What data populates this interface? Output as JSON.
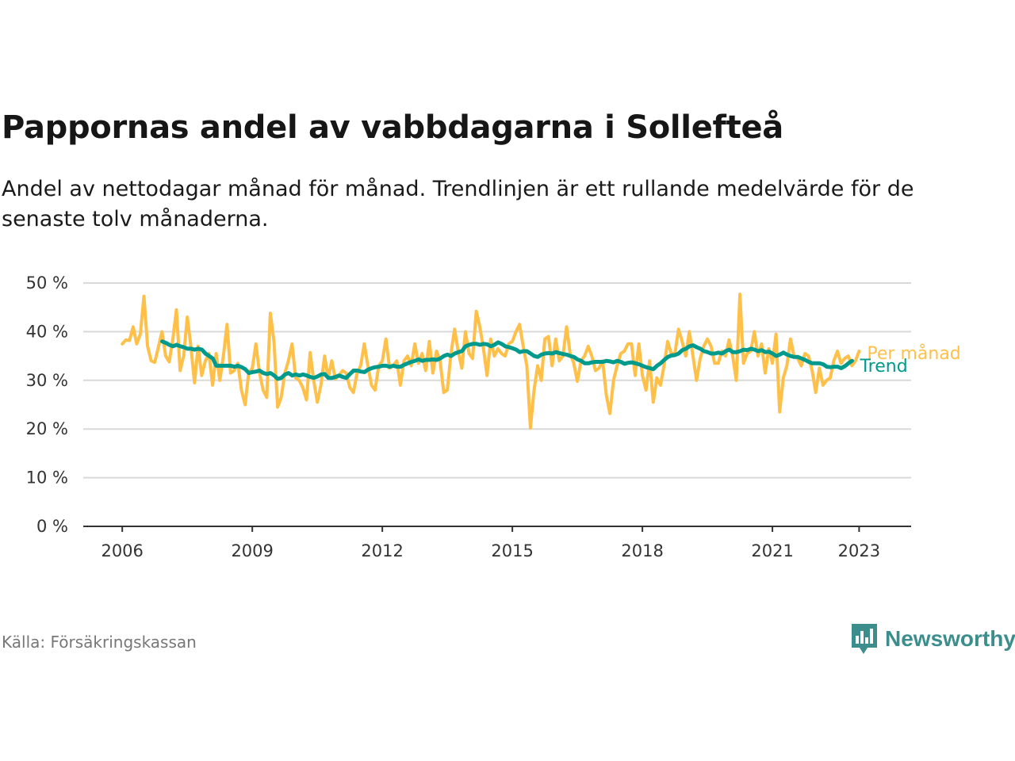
{
  "header": {
    "title": "Pappornas andel av vabbdagarna i Sollefteå",
    "subtitle": "Andel av nettodagar månad för månad. Trendlinjen är ett rullande medelvärde för de senaste tolv månaderna."
  },
  "footer": {
    "source": "Källa: Försäkringskassan",
    "brand": "Newsworthy",
    "brand_color": "#3b8e8c",
    "brand_icon": "bar-chart-speech-bubble-icon"
  },
  "chart_data": {
    "type": "line",
    "title": "Pappornas andel av vabbdagarna i Sollefteå",
    "subtitle": "Andel av nettodagar månad för månad. Trendlinjen är ett rullande medelvärde för de senaste tolv månaderna.",
    "xlabel": "",
    "ylabel": "",
    "x_unit": "year",
    "xlim": [
      2005.1,
      2024.2
    ],
    "ylim": [
      0,
      50
    ],
    "y_ticks": [
      0,
      10,
      20,
      30,
      40,
      50
    ],
    "y_tick_labels": [
      "0 %",
      "10 %",
      "20 %",
      "30 %",
      "40 %",
      "50 %"
    ],
    "x_ticks": [
      2006,
      2009,
      2012,
      2015,
      2018,
      2021,
      2023
    ],
    "x_tick_labels": [
      "2006",
      "2009",
      "2012",
      "2015",
      "2018",
      "2021",
      "2023"
    ],
    "grid": true,
    "legend": "inline-right",
    "series": [
      {
        "name": "Per månad",
        "color": "#ffc04a",
        "start_year": 2006.0,
        "step_years": 0.08333333,
        "values": [
          37.5,
          38.3,
          38.2,
          41.0,
          37.5,
          39.5,
          47.3,
          37.0,
          34.0,
          33.7,
          36.8,
          40.0,
          35.0,
          33.8,
          38.5,
          44.5,
          32.0,
          35.0,
          43.0,
          37.0,
          29.5,
          37.0,
          31.0,
          34.0,
          35.5,
          29.0,
          35.5,
          30.0,
          35.0,
          41.5,
          31.5,
          32.0,
          33.5,
          28.0,
          25.0,
          31.5,
          32.5,
          37.5,
          31.5,
          28.0,
          26.5,
          43.8,
          38.0,
          24.5,
          26.5,
          31.5,
          34.0,
          37.5,
          30.5,
          30.0,
          28.5,
          26.0,
          35.7,
          30.0,
          25.5,
          29.0,
          35.0,
          30.5,
          34.0,
          30.3,
          31.0,
          32.0,
          31.5,
          28.5,
          27.5,
          31.5,
          33.0,
          37.5,
          33.0,
          29.0,
          28.0,
          33.0,
          34.0,
          38.5,
          32.5,
          33.0,
          34.0,
          29.0,
          34.0,
          35.0,
          33.0,
          37.5,
          33.5,
          35.5,
          32.0,
          38.0,
          31.5,
          36.0,
          34.0,
          27.5,
          28.0,
          35.5,
          40.5,
          36.0,
          32.5,
          40.0,
          35.5,
          34.5,
          44.2,
          41.0,
          36.5,
          31.0,
          38.5,
          35.0,
          36.5,
          35.5,
          35.0,
          37.5,
          38.0,
          40.0,
          41.5,
          37.0,
          33.0,
          20.2,
          28.0,
          33.0,
          30.0,
          38.5,
          39.0,
          33.0,
          38.5,
          34.0,
          35.0,
          41.0,
          35.5,
          33.5,
          29.8,
          34.0,
          35.0,
          37.0,
          35.0,
          32.0,
          32.5,
          34.0,
          27.0,
          23.2,
          30.0,
          33.0,
          35.5,
          36.0,
          37.5,
          37.5,
          31.0,
          37.5,
          31.0,
          28.0,
          34.0,
          25.5,
          30.5,
          29.0,
          33.0,
          38.0,
          35.5,
          35.5,
          40.5,
          38.0,
          35.0,
          40.0,
          35.0,
          30.0,
          34.5,
          37.0,
          38.5,
          37.0,
          33.5,
          33.5,
          36.0,
          35.0,
          38.3,
          35.0,
          30.0,
          47.7,
          33.5,
          35.5,
          36.0,
          40.0,
          35.0,
          37.5,
          31.5,
          36.5,
          33.5,
          39.5,
          23.5,
          30.5,
          33.0,
          38.5,
          35.0,
          34.5,
          33.0,
          35.5,
          35.0,
          32.0,
          27.5,
          32.5,
          29.0,
          30.0,
          30.5,
          34.0,
          36.0,
          33.5,
          34.5,
          35.0,
          33.0,
          34.0,
          36.0
        ]
      },
      {
        "name": "Trend",
        "color": "#009a8c",
        "start_year": 2006.92,
        "step_years": 0.08333333,
        "values": [
          38.0,
          37.7,
          37.3,
          37.0,
          37.3,
          37.0,
          36.8,
          36.5,
          36.5,
          36.3,
          36.5,
          36.3,
          35.5,
          35.0,
          34.5,
          33.0,
          33.0,
          33.0,
          33.0,
          33.0,
          32.8,
          33.0,
          32.7,
          32.3,
          31.5,
          31.7,
          31.8,
          32.0,
          31.5,
          31.3,
          31.5,
          31.0,
          30.3,
          30.5,
          31.2,
          31.5,
          31.0,
          31.2,
          31.0,
          31.2,
          31.0,
          30.7,
          30.5,
          30.8,
          31.2,
          31.3,
          30.5,
          30.5,
          30.7,
          31.0,
          30.7,
          30.5,
          31.3,
          32.0,
          32.0,
          31.8,
          31.7,
          32.2,
          32.5,
          32.7,
          32.8,
          33.0,
          33.0,
          32.8,
          33.0,
          32.8,
          32.8,
          33.2,
          33.5,
          33.8,
          34.0,
          34.3,
          34.0,
          34.2,
          34.2,
          34.3,
          34.2,
          34.5,
          35.0,
          35.3,
          35.0,
          35.5,
          35.8,
          36.0,
          37.0,
          37.3,
          37.5,
          37.5,
          37.3,
          37.5,
          37.4,
          37.0,
          37.3,
          37.8,
          37.5,
          37.0,
          36.8,
          36.6,
          36.3,
          35.8,
          36.0,
          36.0,
          35.5,
          35.0,
          34.8,
          35.3,
          35.5,
          35.6,
          35.5,
          35.8,
          35.6,
          35.4,
          35.3,
          35.0,
          34.8,
          34.3,
          34.0,
          33.5,
          33.5,
          33.7,
          33.8,
          33.8,
          33.8,
          34.0,
          33.9,
          33.7,
          34.0,
          33.8,
          33.4,
          33.6,
          33.7,
          33.5,
          33.3,
          33.0,
          32.7,
          32.5,
          32.3,
          33.0,
          33.5,
          34.2,
          34.8,
          35.1,
          35.2,
          35.5,
          36.2,
          36.5,
          37.0,
          37.2,
          36.8,
          36.5,
          36.0,
          35.8,
          35.5,
          35.5,
          35.7,
          35.5,
          36.0,
          36.3,
          35.8,
          35.8,
          36.0,
          36.3,
          36.2,
          36.5,
          36.3,
          36.0,
          36.2,
          35.8,
          35.9,
          35.5,
          35.0,
          35.3,
          35.7,
          35.3,
          35.0,
          34.8,
          34.8,
          34.5,
          34.2,
          33.8,
          33.5,
          33.5,
          33.5,
          33.3,
          32.8,
          32.7,
          32.8,
          32.8,
          32.5,
          32.9,
          33.5,
          34.0
        ]
      }
    ]
  }
}
